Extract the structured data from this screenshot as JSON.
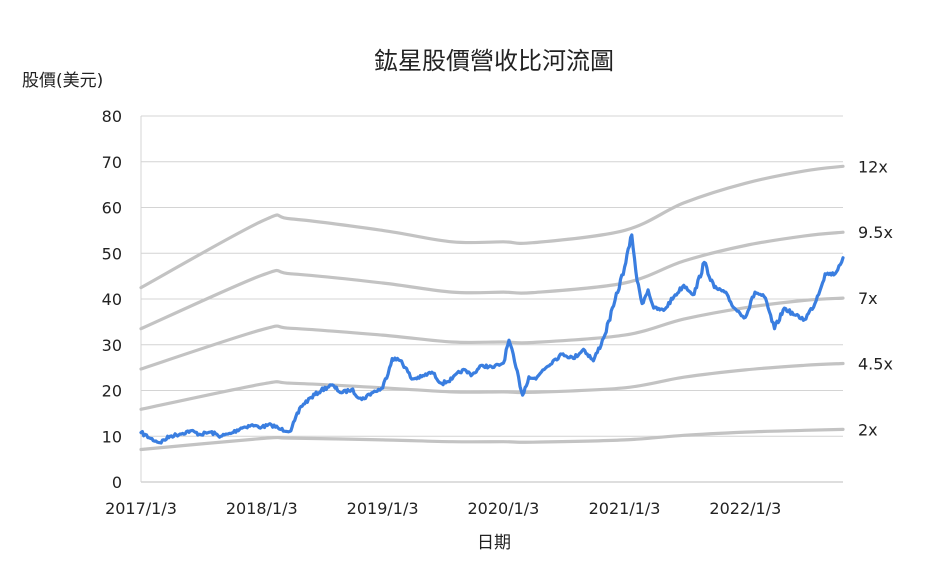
{
  "chart_data": {
    "type": "line",
    "title": "鈜星股價營收比河流圖",
    "ylabel": "股價(美元)",
    "xlabel": "日期",
    "ylim": [
      0,
      80
    ],
    "y_ticks": [
      "0",
      "10",
      "20",
      "30",
      "40",
      "50",
      "60",
      "70",
      "80"
    ],
    "x_ticks": [
      "2017/1/3",
      "2018/1/3",
      "2019/1/3",
      "2020/1/3",
      "2021/1/3",
      "2022/1/3"
    ],
    "xlim": [
      "2017/1/3",
      "2022/10/25"
    ],
    "grid": "horizontal",
    "colors": {
      "price": "#3a7ee0",
      "band": "#c3c3c3",
      "grid": "#d4d4d4"
    },
    "bands": [
      {
        "name": "12x",
        "x": [
          "2017/1/3",
          "2018/1/3",
          "2018/4/1",
          "2019/1/3",
          "2019/8/1",
          "2020/1/3",
          "2020/4/1",
          "2021/1/3",
          "2021/7/1",
          "2022/1/3",
          "2022/7/1",
          "2022/10/25"
        ],
        "values": [
          42.5,
          57.0,
          57.5,
          55.0,
          52.5,
          52.5,
          52.3,
          55.0,
          61.0,
          65.3,
          68.0,
          69.0
        ]
      },
      {
        "name": "9.5x",
        "x": [
          "2017/1/3",
          "2018/1/3",
          "2018/4/1",
          "2019/1/3",
          "2019/8/1",
          "2020/1/3",
          "2020/4/1",
          "2021/1/3",
          "2021/7/1",
          "2022/1/3",
          "2022/7/1",
          "2022/10/25"
        ],
        "values": [
          33.5,
          45.2,
          45.5,
          43.5,
          41.5,
          41.5,
          41.4,
          43.5,
          48.3,
          51.7,
          53.8,
          54.6
        ]
      },
      {
        "name": "7x",
        "x": [
          "2017/1/3",
          "2018/1/3",
          "2018/4/1",
          "2019/1/3",
          "2019/8/1",
          "2020/1/3",
          "2020/4/1",
          "2021/1/3",
          "2021/7/1",
          "2022/1/3",
          "2022/7/1",
          "2022/10/25"
        ],
        "values": [
          24.7,
          33.3,
          33.6,
          32.1,
          30.6,
          30.6,
          30.5,
          32.1,
          35.6,
          38.1,
          39.7,
          40.2
        ]
      },
      {
        "name": "4.5x",
        "x": [
          "2017/1/3",
          "2018/1/3",
          "2018/4/1",
          "2019/1/3",
          "2019/8/1",
          "2020/1/3",
          "2020/4/1",
          "2021/1/3",
          "2021/7/1",
          "2022/1/3",
          "2022/7/1",
          "2022/10/25"
        ],
        "values": [
          15.9,
          21.4,
          21.6,
          20.6,
          19.7,
          19.7,
          19.6,
          20.6,
          22.9,
          24.5,
          25.5,
          25.9
        ]
      },
      {
        "name": "2x",
        "x": [
          "2017/1/3",
          "2018/1/3",
          "2018/4/1",
          "2019/1/3",
          "2019/8/1",
          "2020/1/3",
          "2020/4/1",
          "2021/1/3",
          "2021/7/1",
          "2022/1/3",
          "2022/7/1",
          "2022/10/25"
        ],
        "values": [
          7.1,
          9.5,
          9.6,
          9.2,
          8.8,
          8.8,
          8.7,
          9.2,
          10.2,
          10.9,
          11.3,
          11.5
        ]
      }
    ],
    "series": [
      {
        "x": [
          "2017/1/3",
          "2017/2/1",
          "2017/3/1",
          "2017/4/1",
          "2017/5/1",
          "2017/6/1",
          "2017/7/1",
          "2017/8/1",
          "2017/9/1",
          "2017/10/1",
          "2017/11/1",
          "2017/12/1",
          "2018/1/3",
          "2018/2/1",
          "2018/3/1",
          "2018/4/1",
          "2018/5/1",
          "2018/6/1",
          "2018/7/1",
          "2018/8/1",
          "2018/9/1",
          "2018/10/1",
          "2018/11/1",
          "2018/12/1",
          "2019/1/3",
          "2019/2/1",
          "2019/3/1",
          "2019/4/1",
          "2019/5/1",
          "2019/6/1",
          "2019/7/1",
          "2019/8/1",
          "2019/9/1",
          "2019/10/1",
          "2019/11/1",
          "2019/12/1",
          "2020/1/3",
          "2020/1/20",
          "2020/2/10",
          "2020/3/1",
          "2020/3/20",
          "2020/4/10",
          "2020/5/1",
          "2020/6/1",
          "2020/7/1",
          "2020/8/1",
          "2020/9/1",
          "2020/10/1",
          "2020/11/1",
          "2020/12/1",
          "2021/1/3",
          "2021/1/25",
          "2021/2/10",
          "2021/2/25",
          "2021/3/15",
          "2021/4/1",
          "2021/5/1",
          "2021/6/1",
          "2021/7/1",
          "2021/8/1",
          "2021/9/1",
          "2021/10/1",
          "2021/11/1",
          "2021/12/1",
          "2022/1/3",
          "2022/2/1",
          "2022/3/1",
          "2022/4/1",
          "2022/5/1",
          "2022/6/1",
          "2022/7/1",
          "2022/8/1",
          "2022/9/1",
          "2022/10/1",
          "2022/10/25"
        ],
        "values": [
          10.8,
          9.5,
          8.6,
          10.0,
          10.5,
          11.2,
          10.4,
          10.9,
          10.0,
          10.6,
          11.8,
          12.4,
          12.0,
          12.5,
          11.5,
          11.2,
          16.5,
          18.5,
          20.0,
          21.2,
          19.5,
          20.2,
          18.0,
          19.5,
          20.5,
          27.0,
          26.5,
          22.5,
          23.0,
          24.0,
          21.5,
          22.5,
          24.5,
          23.5,
          25.5,
          25.0,
          26.0,
          31.0,
          25.0,
          19.0,
          23.0,
          22.5,
          24.5,
          26.5,
          28.0,
          27.0,
          29.0,
          26.5,
          31.5,
          38.5,
          47.0,
          54.0,
          44.0,
          39.0,
          42.0,
          38.0,
          37.5,
          40.5,
          43.0,
          41.0,
          48.0,
          42.5,
          41.5,
          38.0,
          36.0,
          41.5,
          40.5,
          33.5,
          38.0,
          36.5,
          35.5,
          39.0,
          45.5,
          45.5,
          49.0
        ]
      }
    ]
  }
}
